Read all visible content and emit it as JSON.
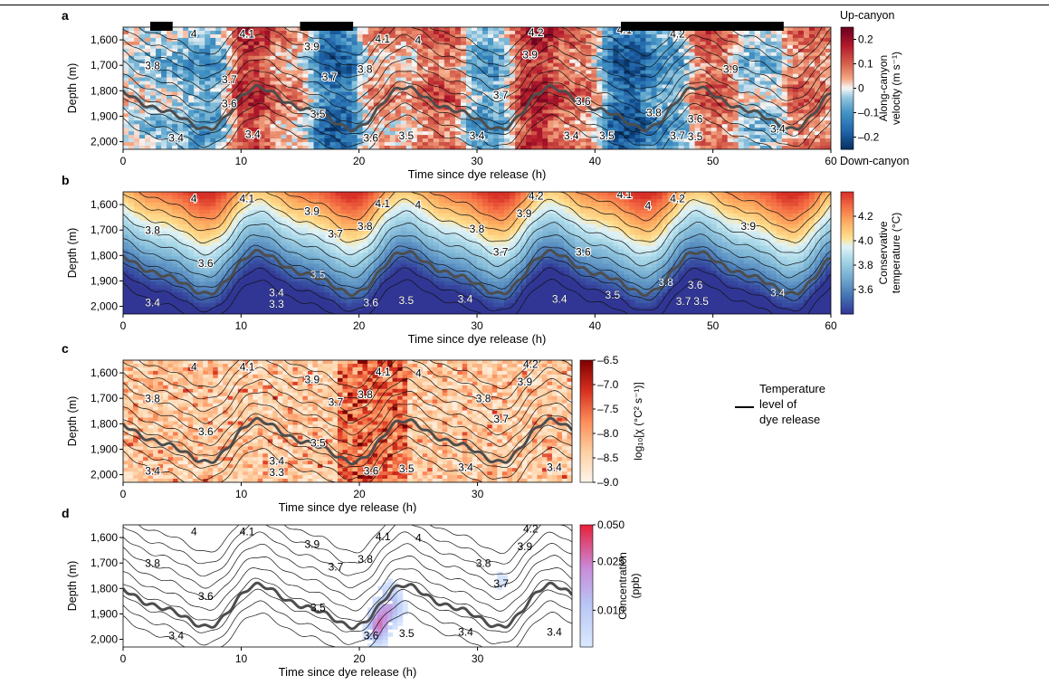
{
  "figure": {
    "panel_letters": [
      "a",
      "b",
      "c",
      "d"
    ],
    "xlabel": "Time since dye release (h)",
    "ylabel": "Depth (m)",
    "y_ticks": [
      "1,600",
      "1,700",
      "1,800",
      "1,900",
      "2,000"
    ],
    "legend_label": "Temperature level of dye release",
    "legend_lines": [
      "Temperature",
      "level of",
      "dye release"
    ]
  },
  "chart_data": [
    {
      "panel": "a",
      "type": "heatmap",
      "variable": "Along-canyon velocity",
      "colorbar_label": [
        "Along-canyon",
        "velocity (m s⁻¹)"
      ],
      "colorbar_ticks": [
        "0.2",
        "0.1",
        "0",
        "–0.1",
        "–0.2"
      ],
      "colorbar_tick_values": [
        0.2,
        0.1,
        0,
        -0.1,
        -0.2
      ],
      "colorbar_range": [
        -0.25,
        0.25
      ],
      "colorbar_top_label": "Up-canyon",
      "colorbar_bottom_label": "Down-canyon",
      "xlim": [
        0,
        60
      ],
      "x_ticks": [
        0,
        10,
        20,
        30,
        40,
        50,
        60
      ],
      "ylim": [
        1550,
        2030
      ],
      "black_bars_x": [
        [
          2.3,
          4.2
        ],
        [
          15,
          19.5
        ],
        [
          42.2,
          56
        ]
      ],
      "velocity_anomaly_samples": [
        {
          "t": 4,
          "v": -0.05
        },
        {
          "t": 7,
          "v": -0.1
        },
        {
          "t": 11,
          "v": 0.18
        },
        {
          "t": 14,
          "v": 0.05
        },
        {
          "t": 18,
          "v": -0.2
        },
        {
          "t": 22,
          "v": 0.05
        },
        {
          "t": 27,
          "v": 0.12
        },
        {
          "t": 31,
          "v": -0.1
        },
        {
          "t": 35,
          "v": 0.2
        },
        {
          "t": 38,
          "v": 0.1
        },
        {
          "t": 43,
          "v": -0.22
        },
        {
          "t": 46,
          "v": -0.1
        },
        {
          "t": 50,
          "v": 0.12
        },
        {
          "t": 54,
          "v": -0.05
        },
        {
          "t": 58,
          "v": 0.1
        }
      ],
      "contour_labels": [
        {
          "text": "4",
          "x": 6,
          "y": 1590
        },
        {
          "text": "4.1",
          "x": 10.5,
          "y": 1590
        },
        {
          "text": "3.9",
          "x": 16,
          "y": 1640
        },
        {
          "text": "4.1",
          "x": 22,
          "y": 1610
        },
        {
          "text": "4",
          "x": 25,
          "y": 1615
        },
        {
          "text": "3.8",
          "x": 2.5,
          "y": 1715
        },
        {
          "text": "3.7",
          "x": 9,
          "y": 1770
        },
        {
          "text": "3.7",
          "x": 17.5,
          "y": 1760
        },
        {
          "text": "3.8",
          "x": 20.5,
          "y": 1730
        },
        {
          "text": "3.6",
          "x": 9,
          "y": 1865
        },
        {
          "text": "3.5",
          "x": 16.5,
          "y": 1905
        },
        {
          "text": "3.4",
          "x": 4.5,
          "y": 2000
        },
        {
          "text": "3.4",
          "x": 11,
          "y": 1985
        },
        {
          "text": "3.6",
          "x": 21,
          "y": 2000
        },
        {
          "text": "3.5",
          "x": 24,
          "y": 1990
        },
        {
          "text": "3.4",
          "x": 30,
          "y": 1990
        },
        {
          "text": "4.2",
          "x": 35,
          "y": 1585
        },
        {
          "text": "3.9",
          "x": 34.5,
          "y": 1672
        },
        {
          "text": "3.7",
          "x": 32,
          "y": 1830
        },
        {
          "text": "3.4",
          "x": 38,
          "y": 1990
        },
        {
          "text": "3.6",
          "x": 39,
          "y": 1855
        },
        {
          "text": "4.1",
          "x": 42.5,
          "y": 1575
        },
        {
          "text": "4.2",
          "x": 47,
          "y": 1590
        },
        {
          "text": "3.9",
          "x": 51.5,
          "y": 1730
        },
        {
          "text": "3.8",
          "x": 45,
          "y": 1900
        },
        {
          "text": "3.6",
          "x": 48.5,
          "y": 1925
        },
        {
          "text": "3.5",
          "x": 41,
          "y": 1990
        },
        {
          "text": "3.7",
          "x": 47,
          "y": 1990
        },
        {
          "text": "3.5",
          "x": 48.5,
          "y": 1995
        },
        {
          "text": "3.4",
          "x": 55.5,
          "y": 1965
        }
      ]
    },
    {
      "panel": "b",
      "type": "heatmap",
      "variable": "Conservative temperature",
      "colorbar_label": [
        "Conservative",
        "temperature (°C)"
      ],
      "colorbar_ticks": [
        "4.2",
        "4.0",
        "3.8",
        "3.6"
      ],
      "colorbar_tick_values": [
        4.2,
        4.0,
        3.8,
        3.6
      ],
      "colorbar_range": [
        3.4,
        4.4
      ],
      "xlim": [
        0,
        60
      ],
      "x_ticks": [
        0,
        10,
        20,
        30,
        40,
        50,
        60
      ],
      "ylim": [
        1550,
        2030
      ],
      "contour_labels": [
        {
          "text": "4",
          "x": 6,
          "y": 1590
        },
        {
          "text": "4.1",
          "x": 10.5,
          "y": 1590
        },
        {
          "text": "3.9",
          "x": 16,
          "y": 1640
        },
        {
          "text": "4.1",
          "x": 22,
          "y": 1610
        },
        {
          "text": "4",
          "x": 25,
          "y": 1615
        },
        {
          "text": "3.8",
          "x": 2.5,
          "y": 1715
        },
        {
          "text": "3.7",
          "x": 18,
          "y": 1730
        },
        {
          "text": "3.8",
          "x": 20.5,
          "y": 1700
        },
        {
          "text": "3.6",
          "x": 7,
          "y": 1845
        },
        {
          "text": "3.5",
          "x": 16.5,
          "y": 1890
        },
        {
          "text": "3.4",
          "x": 2.5,
          "y": 2000
        },
        {
          "text": "3.4",
          "x": 13,
          "y": 1960
        },
        {
          "text": "3.3",
          "x": 13,
          "y": 2005
        },
        {
          "text": "3.6",
          "x": 21,
          "y": 2000
        },
        {
          "text": "3.5",
          "x": 24,
          "y": 1990
        },
        {
          "text": "3.4",
          "x": 29,
          "y": 1985
        },
        {
          "text": "4.2",
          "x": 35,
          "y": 1580
        },
        {
          "text": "3.9",
          "x": 34,
          "y": 1650
        },
        {
          "text": "3.8",
          "x": 30,
          "y": 1710
        },
        {
          "text": "3.7",
          "x": 32,
          "y": 1800
        },
        {
          "text": "3.6",
          "x": 39,
          "y": 1800
        },
        {
          "text": "3.4",
          "x": 37,
          "y": 1985
        },
        {
          "text": "4.1",
          "x": 42.5,
          "y": 1575
        },
        {
          "text": "4.2",
          "x": 47,
          "y": 1590
        },
        {
          "text": "4",
          "x": 44.5,
          "y": 1620
        },
        {
          "text": "3.9",
          "x": 53,
          "y": 1700
        },
        {
          "text": "3.5",
          "x": 41.5,
          "y": 1970
        },
        {
          "text": "3.8",
          "x": 46,
          "y": 1920
        },
        {
          "text": "3.6",
          "x": 48.5,
          "y": 1930
        },
        {
          "text": "3.7",
          "x": 47.5,
          "y": 1995
        },
        {
          "text": "3.5",
          "x": 49,
          "y": 1995
        },
        {
          "text": "3.4",
          "x": 55.5,
          "y": 1960
        }
      ]
    },
    {
      "panel": "c",
      "type": "heatmap",
      "variable": "log10 chi",
      "colorbar_label": [
        "log₁₀[χ (°C² s⁻¹)]"
      ],
      "colorbar_ticks": [
        "–6.5",
        "–7.0",
        "–7.5",
        "–8.0",
        "–8.5",
        "–9.0"
      ],
      "colorbar_tick_values": [
        -6.5,
        -7.0,
        -7.5,
        -8.0,
        -8.5,
        -9.0
      ],
      "colorbar_range": [
        -9.0,
        -6.5
      ],
      "xlim": [
        0,
        38
      ],
      "x_ticks": [
        0,
        10,
        20,
        30
      ],
      "ylim": [
        1550,
        2030
      ],
      "contour_labels": [
        {
          "text": "4",
          "x": 6,
          "y": 1590
        },
        {
          "text": "4.1",
          "x": 10.5,
          "y": 1590
        },
        {
          "text": "3.9",
          "x": 16,
          "y": 1640
        },
        {
          "text": "4.1",
          "x": 22,
          "y": 1610
        },
        {
          "text": "4",
          "x": 25,
          "y": 1615
        },
        {
          "text": "3.8",
          "x": 2.5,
          "y": 1715
        },
        {
          "text": "3.7",
          "x": 18,
          "y": 1730
        },
        {
          "text": "3.8",
          "x": 20.5,
          "y": 1700
        },
        {
          "text": "3.6",
          "x": 7,
          "y": 1845
        },
        {
          "text": "3.5",
          "x": 16.5,
          "y": 1890
        },
        {
          "text": "3.4",
          "x": 2.5,
          "y": 2000
        },
        {
          "text": "3.4",
          "x": 13,
          "y": 1960
        },
        {
          "text": "3.3",
          "x": 13,
          "y": 2005
        },
        {
          "text": "3.6",
          "x": 21,
          "y": 2000
        },
        {
          "text": "3.5",
          "x": 24,
          "y": 1990
        },
        {
          "text": "3.4",
          "x": 29,
          "y": 1985
        },
        {
          "text": "4.2",
          "x": 34.5,
          "y": 1580
        },
        {
          "text": "3.9",
          "x": 34,
          "y": 1650
        },
        {
          "text": "3.8",
          "x": 30.5,
          "y": 1715
        },
        {
          "text": "3.7",
          "x": 32,
          "y": 1795
        },
        {
          "text": "3.4",
          "x": 36.5,
          "y": 1985
        }
      ]
    },
    {
      "panel": "d",
      "type": "heatmap",
      "variable": "Dye concentration",
      "colorbar_label": [
        "Concentration",
        "(ppb)"
      ],
      "colorbar_ticks": [
        "0.050",
        "0.025",
        "0.010"
      ],
      "colorbar_tick_values": [
        0.05,
        0.025,
        0.01
      ],
      "colorbar_range": [
        0.005,
        0.05
      ],
      "xlim": [
        0,
        38
      ],
      "x_ticks": [
        0,
        10,
        20,
        30
      ],
      "ylim": [
        1550,
        2030
      ],
      "dye_patch_samples": [
        {
          "t": 21.5,
          "z": 1960,
          "c": 0.03
        },
        {
          "t": 22,
          "z": 1900,
          "c": 0.02
        },
        {
          "t": 22.5,
          "z": 1820,
          "c": 0.012
        },
        {
          "t": 23,
          "z": 1880,
          "c": 0.015
        },
        {
          "t": 32,
          "z": 1770,
          "c": 0.008
        }
      ],
      "contour_labels": [
        {
          "text": "4",
          "x": 6,
          "y": 1590
        },
        {
          "text": "4.1",
          "x": 10.5,
          "y": 1590
        },
        {
          "text": "3.9",
          "x": 16,
          "y": 1640
        },
        {
          "text": "4.1",
          "x": 22,
          "y": 1610
        },
        {
          "text": "4",
          "x": 25,
          "y": 1615
        },
        {
          "text": "3.8",
          "x": 2.5,
          "y": 1715
        },
        {
          "text": "3.7",
          "x": 18,
          "y": 1730
        },
        {
          "text": "3.8",
          "x": 20.5,
          "y": 1700
        },
        {
          "text": "3.6",
          "x": 7,
          "y": 1845
        },
        {
          "text": "3.5",
          "x": 16.5,
          "y": 1890
        },
        {
          "text": "3.4",
          "x": 4.5,
          "y": 2000
        },
        {
          "text": "3.6",
          "x": 21,
          "y": 2000
        },
        {
          "text": "3.5",
          "x": 24,
          "y": 1990
        },
        {
          "text": "3.4",
          "x": 29,
          "y": 1985
        },
        {
          "text": "4.2",
          "x": 34.5,
          "y": 1580
        },
        {
          "text": "3.9",
          "x": 34,
          "y": 1650
        },
        {
          "text": "3.8",
          "x": 30.5,
          "y": 1715
        },
        {
          "text": "3.7",
          "x": 32,
          "y": 1795
        },
        {
          "text": "3.4",
          "x": 36.5,
          "y": 1985
        }
      ]
    }
  ],
  "colors": {
    "velocity_pos": "#b2182b",
    "velocity_neg": "#2166ac",
    "temp_warm": "#d7301f",
    "temp_cold": "#313695",
    "chi_high": "#99000d",
    "dye_high": "#e8203c",
    "dye_low": "#c8d8ff",
    "release_line": "#4d4d4d"
  }
}
